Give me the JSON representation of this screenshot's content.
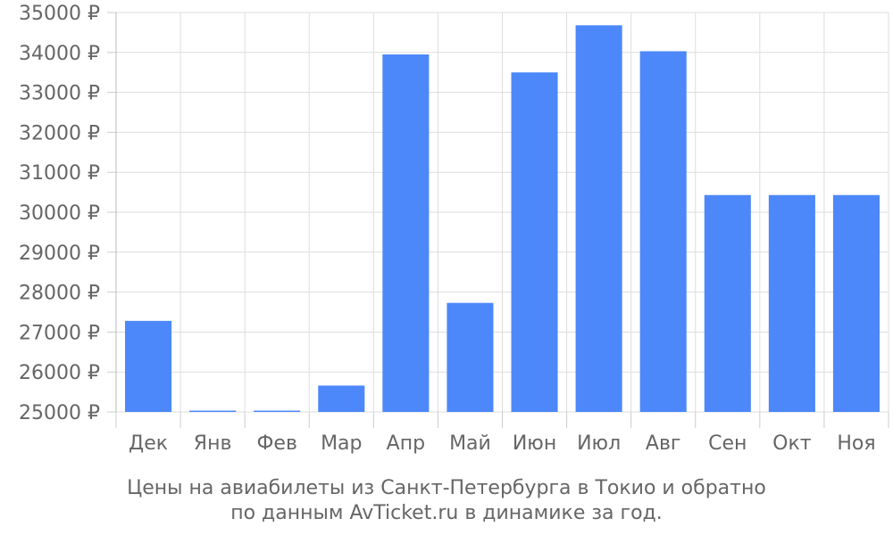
{
  "chart_data": {
    "type": "bar",
    "title_line1": "Цены на авиабилеты из Санкт-Петербурга в Токио и обратно",
    "title_line2": "по данным AvTicket.ru в динамике за год.",
    "currency_suffix": " ₽",
    "categories": [
      "Дек",
      "Янв",
      "Фев",
      "Мар",
      "Апр",
      "Май",
      "Июн",
      "Июл",
      "Авг",
      "Сен",
      "Окт",
      "Ноя"
    ],
    "values": [
      27280,
      25030,
      25030,
      25660,
      33950,
      27730,
      33500,
      34680,
      34030,
      30430,
      30430,
      30430
    ],
    "ylim": [
      25000,
      35000
    ],
    "yticks": [
      25000,
      26000,
      27000,
      28000,
      29000,
      30000,
      31000,
      32000,
      33000,
      34000,
      35000
    ],
    "grid": true,
    "legend": "none",
    "bar_color": "#4d88fa",
    "grid_color": "#dddddd"
  }
}
